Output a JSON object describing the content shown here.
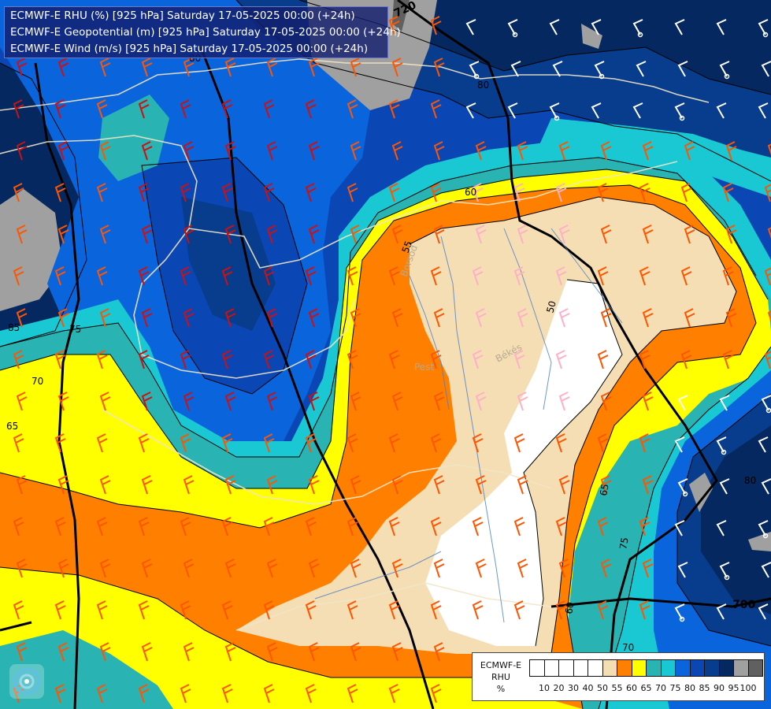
{
  "title": {
    "line1": "ECMWF-E RHU (%) [925 hPa] Saturday 17-05-2025 00:00 (+24h)",
    "line2": "ECMWF-E Geopotential (m) [925 hPa] Saturday 17-05-2025 00:00 (+24h)",
    "line3": "ECMWF-E Wind (m/s) [925 hPa] Saturday 17-05-2025 00:00 (+24h)"
  },
  "legend": {
    "model": "ECMWF-E",
    "variable": "RHU",
    "unit": "%",
    "ticks": [
      "10",
      "20",
      "30",
      "40",
      "50",
      "55",
      "60",
      "65",
      "70",
      "75",
      "80",
      "85",
      "90",
      "95",
      "100"
    ],
    "colors": [
      "#ffffff",
      "#ffffff",
      "#ffffff",
      "#ffffff",
      "#ffffff",
      "#f5deb3",
      "#ff8000",
      "#ffff00",
      "#2ab3b3",
      "#19c8d2",
      "#0a64dc",
      "#0a46b4",
      "#083c8c",
      "#052860",
      "#a0a0a0",
      "#606060"
    ]
  },
  "contour_labels": {
    "geo_720": "720",
    "geo_700": "700",
    "geo_80_a": "80",
    "geo_80_b": "80",
    "rhu_55": "55",
    "rhu_60_n": "60",
    "rhu_60_s": "60",
    "rhu_50": "50",
    "rhu_65_w": "65",
    "rhu_65_e": "65",
    "rhu_70_w": "70",
    "rhu_70_s": "70",
    "rhu_75_w": "75",
    "rhu_75_e": "75",
    "rhu_85": "85",
    "rhu_80_e": "80"
  },
  "place_names": {
    "pest": "Pest",
    "bekes": "Békés",
    "borsod": "Borsod"
  },
  "colors": {
    "rhu_100": "#606060",
    "rhu_95": "#a0a0a0",
    "rhu_90": "#052860",
    "rhu_85": "#083c8c",
    "rhu_80": "#0a46b4",
    "rhu_75": "#0a64dc",
    "rhu_70": "#19c8d2",
    "rhu_65": "#2ab3b3",
    "rhu_60": "#ffff00",
    "rhu_55": "#ff8000",
    "rhu_50": "#f5deb3",
    "rhu_low": "#ffffff",
    "wind_red": "#cc1111",
    "wind_orange": "#ff5500",
    "wind_pink": "#ffb0c8",
    "wind_white": "#ffffff"
  }
}
